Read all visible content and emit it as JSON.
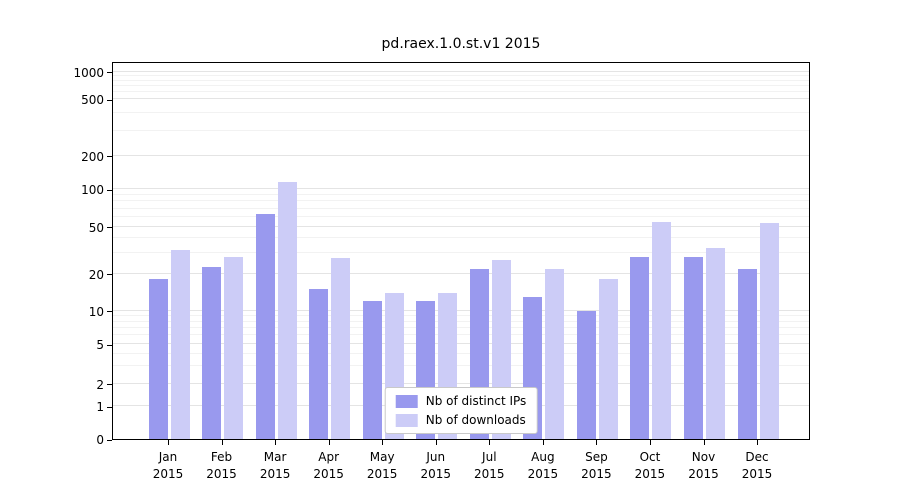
{
  "chart_data": {
    "type": "bar",
    "title": "pd.raex.1.0.st.v1 2015",
    "categories": [
      "Jan",
      "Feb",
      "Mar",
      "Apr",
      "May",
      "Jun",
      "Jul",
      "Aug",
      "Sep",
      "Oct",
      "Nov",
      "Dec"
    ],
    "category_year": "2015",
    "series": [
      {
        "name": "Nb of distinct IPs",
        "color": "#9999ee",
        "values": [
          18,
          23,
          63,
          15,
          12,
          12,
          22,
          13,
          10,
          28,
          28,
          22
        ]
      },
      {
        "name": "Nb of downloads",
        "color": "#ccccf7",
        "values": [
          32,
          28,
          115,
          27,
          14,
          14,
          26,
          22,
          18,
          55,
          33,
          54
        ]
      }
    ],
    "yticks": [
      0,
      1,
      2,
      5,
      10,
      20,
      50,
      100,
      200,
      500,
      1000
    ],
    "scale": "log",
    "grid": true,
    "legend_position": "lower-center-inside",
    "xlabel": "",
    "ylabel": ""
  }
}
